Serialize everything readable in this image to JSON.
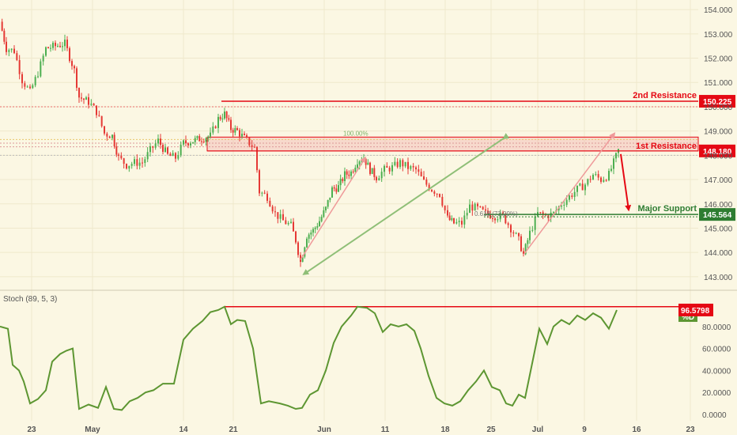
{
  "colors": {
    "background": "#fbf7e3",
    "up_candle": "#4caf50",
    "down_candle": "#e53935",
    "resistance": "#e50914",
    "support": "#2e7d32",
    "stoch_line": "#5d9632",
    "axis_text": "#555555"
  },
  "chart_data": [
    {
      "type": "candlestick",
      "ylim": [
        142.8,
        154.2
      ],
      "yticks": [
        "154.000",
        "153.000",
        "152.000",
        "151.000",
        "150.000",
        "149.000",
        "148.000",
        "147.000",
        "146.000",
        "145.000",
        "144.000",
        "143.000"
      ],
      "xticks": [
        "23",
        "May",
        "14",
        "21",
        "Jun",
        "11",
        "18",
        "25",
        "Jul",
        "9",
        "16",
        "23"
      ],
      "annotations": {
        "second_resistance": {
          "label": "2nd Resistance",
          "value": 150.225,
          "value_label": "150.225"
        },
        "first_resistance": {
          "label": "1st Resistance",
          "value": 148.18,
          "value_label": "148.180"
        },
        "major_support": {
          "label": "Major Support",
          "value": 145.564,
          "value_label": "145.564"
        },
        "fib_100": "100.00%",
        "fib_618": "0.618 (73.00%)"
      },
      "price_path": [
        [
          0,
          153.5
        ],
        [
          8,
          152.4
        ],
        [
          18,
          152.3
        ],
        [
          28,
          151.1
        ],
        [
          38,
          150.6
        ],
        [
          48,
          151.4
        ],
        [
          58,
          152.4
        ],
        [
          70,
          152.5
        ],
        [
          82,
          152.6
        ],
        [
          94,
          151.5
        ],
        [
          100,
          150.4
        ],
        [
          112,
          150.2
        ],
        [
          122,
          149.8
        ],
        [
          132,
          148.9
        ],
        [
          142,
          148.8
        ],
        [
          150,
          147.9
        ],
        [
          160,
          147.6
        ],
        [
          170,
          147.7
        ],
        [
          180,
          147.7
        ],
        [
          190,
          148.2
        ],
        [
          200,
          148.6
        ],
        [
          212,
          148.0
        ],
        [
          222,
          147.9
        ],
        [
          232,
          148.5
        ],
        [
          244,
          148.6
        ],
        [
          255,
          148.7
        ],
        [
          266,
          148.8
        ],
        [
          276,
          149.5
        ],
        [
          284,
          149.7
        ],
        [
          292,
          149.1
        ],
        [
          300,
          149.0
        ],
        [
          312,
          148.6
        ],
        [
          322,
          148.3
        ],
        [
          328,
          146.5
        ],
        [
          338,
          146.3
        ],
        [
          348,
          145.6
        ],
        [
          358,
          145.3
        ],
        [
          368,
          145.1
        ],
        [
          374,
          144.5
        ],
        [
          380,
          143.6
        ],
        [
          388,
          144.7
        ],
        [
          396,
          144.9
        ],
        [
          404,
          145.3
        ],
        [
          412,
          145.8
        ],
        [
          420,
          146.6
        ],
        [
          428,
          146.7
        ],
        [
          436,
          147.2
        ],
        [
          444,
          147.3
        ],
        [
          452,
          147.8
        ],
        [
          460,
          147.9
        ],
        [
          468,
          147.4
        ],
        [
          476,
          147.1
        ],
        [
          486,
          147.4
        ],
        [
          496,
          147.5
        ],
        [
          506,
          147.7
        ],
        [
          516,
          147.5
        ],
        [
          526,
          147.4
        ],
        [
          536,
          146.9
        ],
        [
          546,
          146.6
        ],
        [
          556,
          146.4
        ],
        [
          566,
          145.4
        ],
        [
          574,
          145.2
        ],
        [
          584,
          145.2
        ],
        [
          594,
          145.9
        ],
        [
          604,
          145.8
        ],
        [
          614,
          145.6
        ],
        [
          626,
          145.5
        ],
        [
          636,
          145.5
        ],
        [
          646,
          145.0
        ],
        [
          656,
          144.5
        ],
        [
          662,
          143.9
        ],
        [
          670,
          144.8
        ],
        [
          680,
          145.6
        ],
        [
          690,
          145.5
        ],
        [
          700,
          145.6
        ],
        [
          710,
          146.0
        ],
        [
          720,
          146.3
        ],
        [
          730,
          146.6
        ],
        [
          740,
          146.8
        ],
        [
          750,
          147.2
        ],
        [
          760,
          147.0
        ],
        [
          770,
          147.2
        ],
        [
          782,
          148.2
        ]
      ]
    },
    {
      "type": "line",
      "title": "Stoch (89, 5, 3)",
      "ylim": [
        0,
        100
      ],
      "yticks": [
        "80.0000",
        "60.0000",
        "40.0000",
        "20.0000",
        "0.0000"
      ],
      "series": [
        {
          "name": "%D",
          "last_value_label": "96.5798"
        }
      ],
      "points": [
        [
          0,
          80
        ],
        [
          10,
          78
        ],
        [
          16,
          45
        ],
        [
          24,
          40
        ],
        [
          30,
          30
        ],
        [
          38,
          10
        ],
        [
          48,
          14
        ],
        [
          58,
          22
        ],
        [
          66,
          48
        ],
        [
          76,
          55
        ],
        [
          84,
          58
        ],
        [
          92,
          60
        ],
        [
          100,
          5
        ],
        [
          112,
          9
        ],
        [
          124,
          6
        ],
        [
          134,
          25
        ],
        [
          144,
          5
        ],
        [
          154,
          4
        ],
        [
          164,
          12
        ],
        [
          174,
          15
        ],
        [
          184,
          20
        ],
        [
          194,
          22
        ],
        [
          206,
          28
        ],
        [
          220,
          28
        ],
        [
          232,
          68
        ],
        [
          244,
          78
        ],
        [
          256,
          85
        ],
        [
          266,
          93
        ],
        [
          276,
          95
        ],
        [
          284,
          98
        ],
        [
          292,
          82
        ],
        [
          300,
          86
        ],
        [
          310,
          85
        ],
        [
          320,
          60
        ],
        [
          330,
          10
        ],
        [
          340,
          12
        ],
        [
          354,
          10
        ],
        [
          364,
          8
        ],
        [
          374,
          5
        ],
        [
          382,
          6
        ],
        [
          392,
          18
        ],
        [
          402,
          22
        ],
        [
          412,
          40
        ],
        [
          422,
          65
        ],
        [
          432,
          80
        ],
        [
          444,
          90
        ],
        [
          452,
          98
        ],
        [
          464,
          97
        ],
        [
          474,
          92
        ],
        [
          484,
          75
        ],
        [
          494,
          82
        ],
        [
          504,
          80
        ],
        [
          514,
          82
        ],
        [
          524,
          76
        ],
        [
          532,
          60
        ],
        [
          542,
          35
        ],
        [
          552,
          15
        ],
        [
          562,
          10
        ],
        [
          572,
          8
        ],
        [
          582,
          12
        ],
        [
          592,
          22
        ],
        [
          602,
          30
        ],
        [
          612,
          40
        ],
        [
          622,
          25
        ],
        [
          632,
          22
        ],
        [
          640,
          10
        ],
        [
          648,
          8
        ],
        [
          656,
          18
        ],
        [
          664,
          15
        ],
        [
          674,
          50
        ],
        [
          682,
          78
        ],
        [
          692,
          64
        ],
        [
          700,
          80
        ],
        [
          710,
          86
        ],
        [
          720,
          82
        ],
        [
          730,
          90
        ],
        [
          740,
          86
        ],
        [
          750,
          92
        ],
        [
          760,
          88
        ],
        [
          770,
          78
        ],
        [
          780,
          95
        ]
      ]
    }
  ]
}
